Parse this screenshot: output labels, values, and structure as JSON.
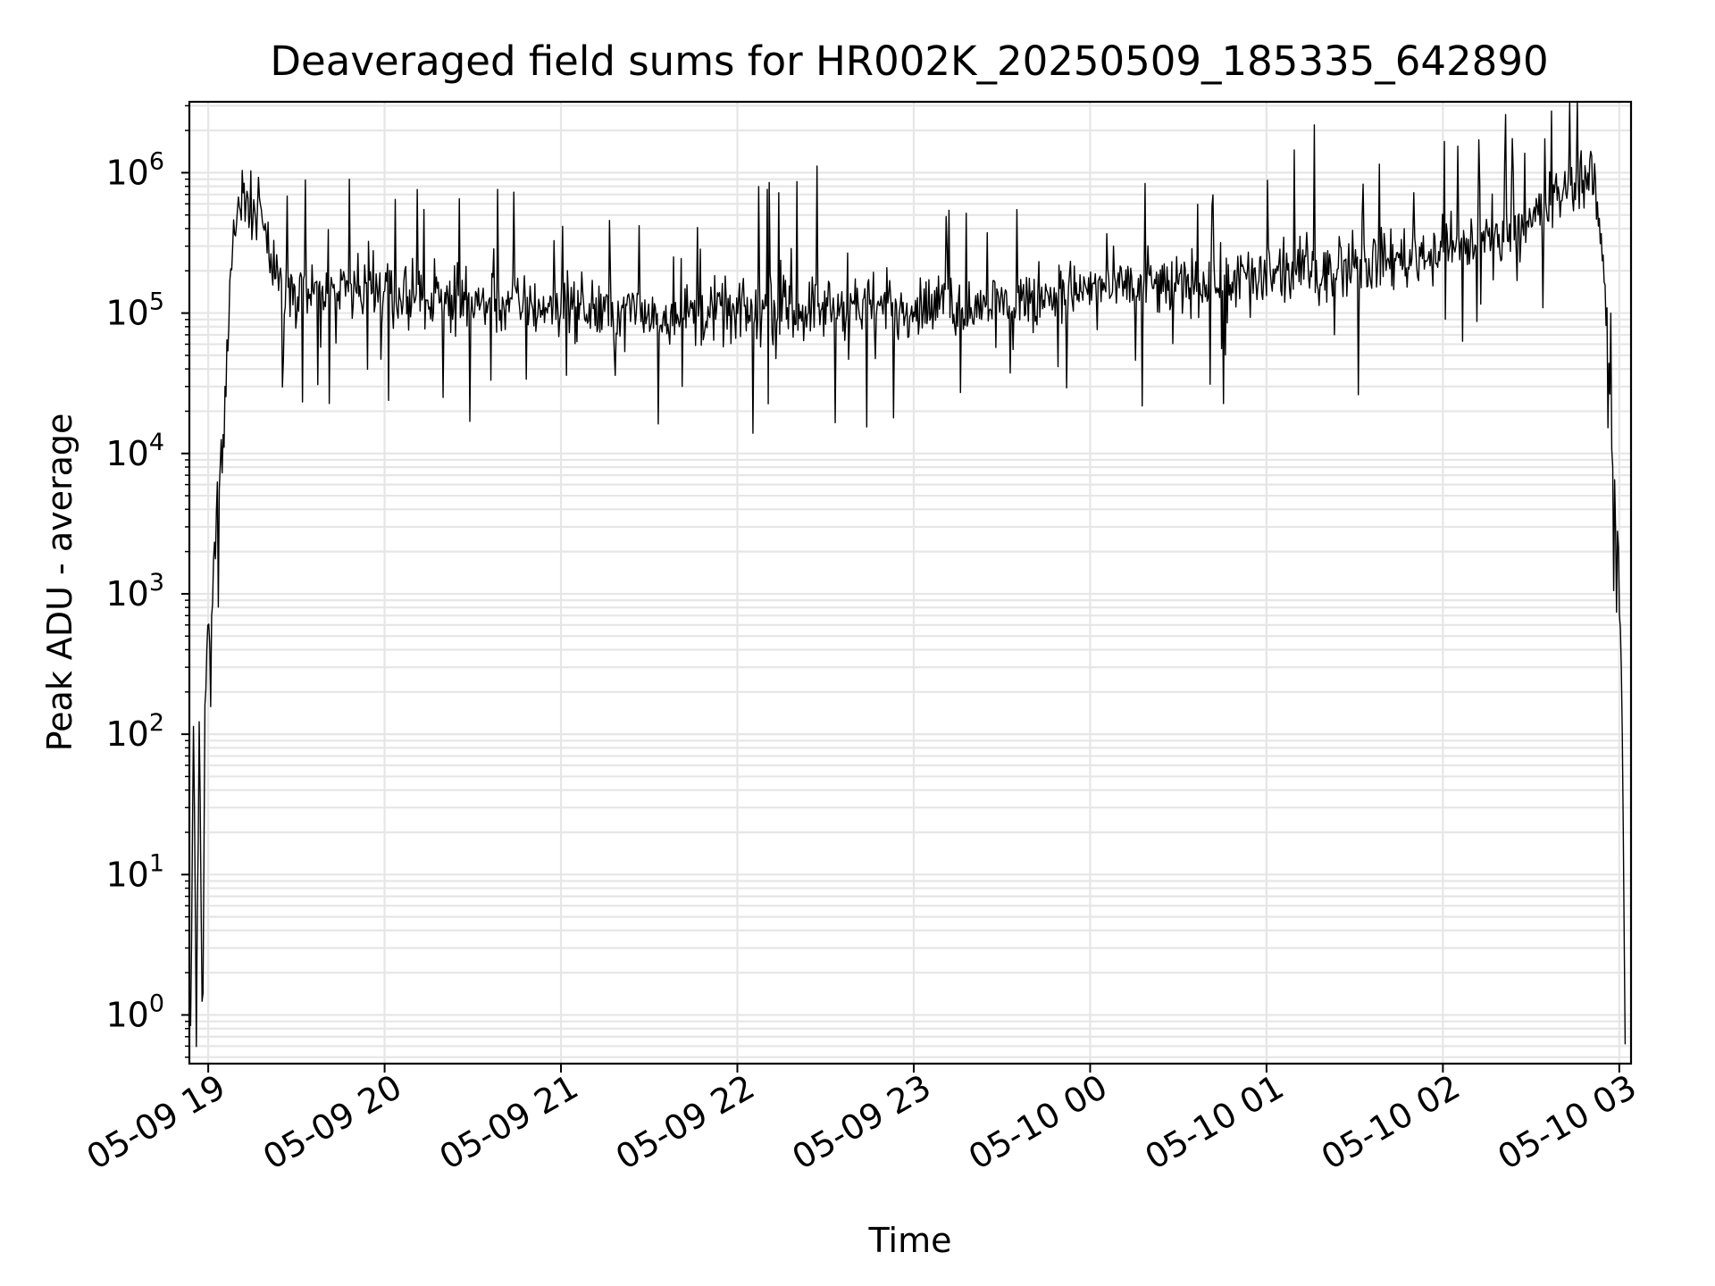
{
  "chart_data": {
    "type": "line",
    "title": "Deaveraged field sums for HR002K_20250509_185335_642890",
    "xlabel": "Time",
    "ylabel": "Peak ADU - average",
    "x_axis_type": "datetime",
    "y_scale": "log",
    "xlim": [
      "2025-05-09T18:53:35",
      "2025-05-10T03:04:00"
    ],
    "ylim": [
      0.45,
      3200000
    ],
    "x_ticks": [
      {
        "value": "2025-05-09T19:00:00",
        "label": "05-09 19"
      },
      {
        "value": "2025-05-09T20:00:00",
        "label": "05-09 20"
      },
      {
        "value": "2025-05-09T21:00:00",
        "label": "05-09 21"
      },
      {
        "value": "2025-05-09T22:00:00",
        "label": "05-09 22"
      },
      {
        "value": "2025-05-09T23:00:00",
        "label": "05-09 23"
      },
      {
        "value": "2025-05-10T00:00:00",
        "label": "05-10 00"
      },
      {
        "value": "2025-05-10T01:00:00",
        "label": "05-10 01"
      },
      {
        "value": "2025-05-10T02:00:00",
        "label": "05-10 02"
      },
      {
        "value": "2025-05-10T03:00:00",
        "label": "05-10 03"
      }
    ],
    "y_ticks": [
      {
        "value": 1,
        "base": "10",
        "exp": "0"
      },
      {
        "value": 10,
        "base": "10",
        "exp": "1"
      },
      {
        "value": 100,
        "base": "10",
        "exp": "2"
      },
      {
        "value": 1000,
        "base": "10",
        "exp": "3"
      },
      {
        "value": 10000,
        "base": "10",
        "exp": "4"
      },
      {
        "value": 100000,
        "base": "10",
        "exp": "5"
      },
      {
        "value": 1000000,
        "base": "10",
        "exp": "6"
      }
    ],
    "grid": true,
    "grid_minor": true,
    "legend": "none",
    "series": [
      {
        "color": "#000000",
        "x": [
          "2025-05-09T18:54:00",
          "2025-05-09T18:55:00",
          "2025-05-09T18:56:00",
          "2025-05-09T18:57:00",
          "2025-05-09T18:58:00",
          "2025-05-09T18:59:00",
          "2025-05-09T19:00:00",
          "2025-05-09T19:01:00",
          "2025-05-09T19:02:00",
          "2025-05-09T19:03:00",
          "2025-05-09T19:04:00",
          "2025-05-09T19:05:00",
          "2025-05-09T19:06:00",
          "2025-05-09T19:07:00",
          "2025-05-09T19:08:00",
          "2025-05-09T19:10:00",
          "2025-05-09T19:12:00",
          "2025-05-09T19:15:00",
          "2025-05-09T19:18:00",
          "2025-05-09T19:20:00",
          "2025-05-09T19:22:00",
          "2025-05-09T19:25:00",
          "2025-05-09T19:30:00",
          "2025-05-09T19:40:00",
          "2025-05-09T20:00:00",
          "2025-05-09T20:30:00",
          "2025-05-09T21:00:00",
          "2025-05-09T21:30:00",
          "2025-05-09T22:00:00",
          "2025-05-09T22:30:00",
          "2025-05-09T23:00:00",
          "2025-05-09T23:30:00",
          "2025-05-10T00:00:00",
          "2025-05-10T00:30:00",
          "2025-05-10T01:00:00",
          "2025-05-10T01:30:00",
          "2025-05-10T02:00:00",
          "2025-05-10T02:20:00",
          "2025-05-10T02:35:00",
          "2025-05-10T02:45:00",
          "2025-05-10T02:50:00",
          "2025-05-10T02:52:00",
          "2025-05-10T02:54:00",
          "2025-05-10T02:56:00",
          "2025-05-10T02:57:00",
          "2025-05-10T02:58:00",
          "2025-05-10T02:59:00",
          "2025-05-10T03:00:00",
          "2025-05-10T03:01:00",
          "2025-05-10T03:02:00"
        ],
        "y": [
          0.5,
          150,
          0.6,
          200,
          0.5,
          300,
          400,
          700,
          1500,
          4000,
          8000,
          9000,
          30000,
          100000,
          250000,
          500000,
          600000,
          600000,
          550000,
          300000,
          200000,
          180000,
          150000,
          130000,
          140000,
          120000,
          110000,
          100000,
          100000,
          110000,
          110000,
          120000,
          150000,
          160000,
          180000,
          220000,
          280000,
          350000,
          550000,
          900000,
          1000000,
          700000,
          300000,
          100000,
          20000,
          8000,
          4000,
          1000,
          200,
          0.5
        ]
      }
    ],
    "noise_sigma_decades": 0.22,
    "spikes": {
      "up_max_decades": 0.9,
      "down_max_decades": 0.85
    }
  }
}
